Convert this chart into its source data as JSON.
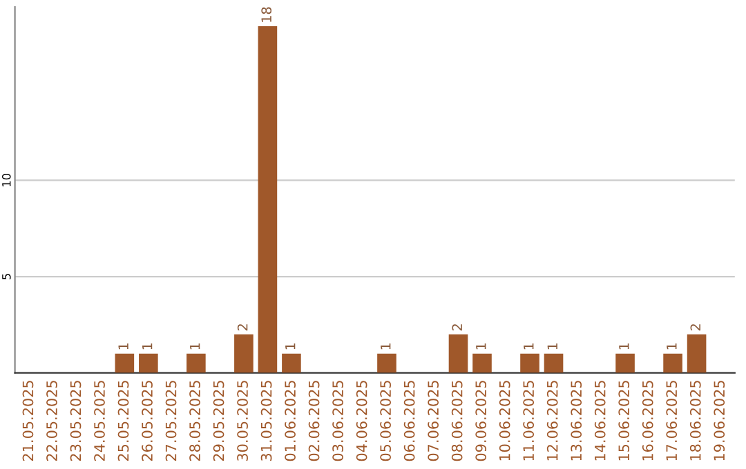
{
  "chart_data": {
    "type": "bar",
    "categories": [
      "21.05.2025",
      "22.05.2025",
      "23.05.2025",
      "24.05.2025",
      "25.05.2025",
      "26.05.2025",
      "27.05.2025",
      "28.05.2025",
      "29.05.2025",
      "30.05.2025",
      "31.05.2025",
      "01.06.2025",
      "02.06.2025",
      "03.06.2025",
      "04.06.2025",
      "05.06.2025",
      "06.06.2025",
      "07.06.2025",
      "08.06.2025",
      "09.06.2025",
      "10.06.2025",
      "11.06.2025",
      "12.06.2025",
      "13.06.2025",
      "14.06.2025",
      "15.06.2025",
      "16.06.2025",
      "17.06.2025",
      "18.06.2025",
      "19.06.2025"
    ],
    "values": [
      0,
      0,
      0,
      0,
      1,
      1,
      0,
      1,
      0,
      2,
      18,
      1,
      0,
      0,
      0,
      1,
      0,
      0,
      2,
      1,
      0,
      1,
      1,
      0,
      0,
      1,
      0,
      1,
      2,
      0
    ],
    "value_labels": [
      null,
      null,
      null,
      null,
      "1",
      "1",
      null,
      "1",
      null,
      "2",
      "18",
      "1",
      null,
      null,
      null,
      "1",
      null,
      null,
      "2",
      "1",
      null,
      "1",
      "1",
      null,
      null,
      "1",
      null,
      "1",
      "2",
      null
    ],
    "color": "#a0582a",
    "ylim": [
      0,
      19
    ],
    "yticks": [
      5,
      10
    ],
    "grid": "y"
  }
}
